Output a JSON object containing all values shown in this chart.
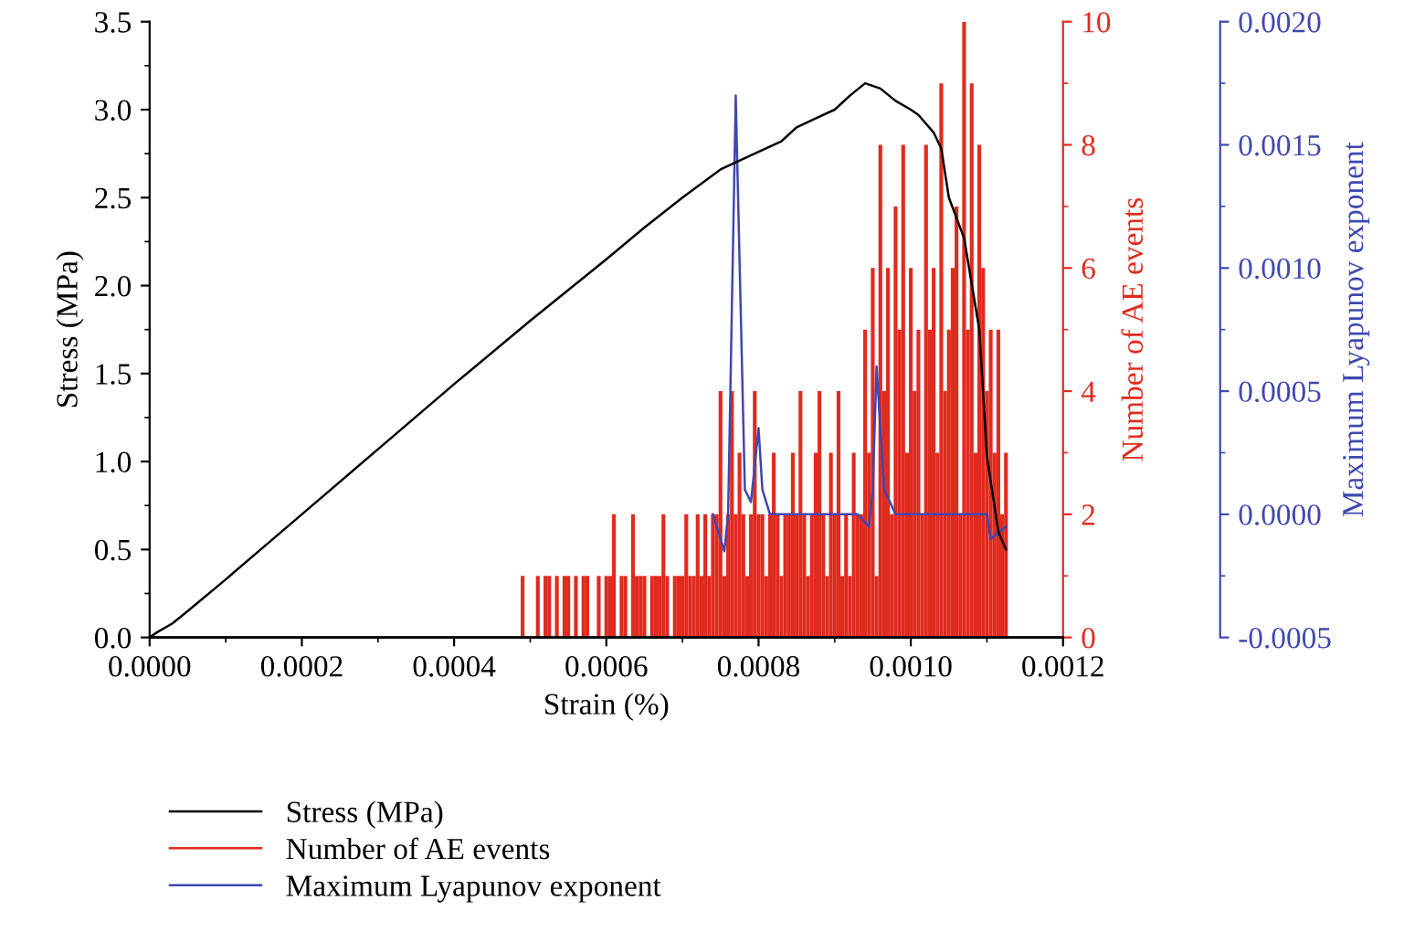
{
  "chart_data": {
    "type": "line",
    "xlabel": "Strain (%)",
    "ylabel": "Stress (MPa)",
    "y2label": "Number of AE events",
    "y3label": "Maximum Lyapunov exponent",
    "xlim": [
      0,
      0.0012
    ],
    "xticks": [
      {
        "value": 0,
        "label": "0.0000"
      },
      {
        "value": 0.0002,
        "label": "0.0002"
      },
      {
        "value": 0.0004,
        "label": "0.0004"
      },
      {
        "value": 0.0006,
        "label": "0.0006"
      },
      {
        "value": 0.0008,
        "label": "0.0008"
      },
      {
        "value": 0.001,
        "label": "0.0010"
      },
      {
        "value": 0.0012,
        "label": "0.0012"
      }
    ],
    "ylim": [
      0,
      3.5
    ],
    "yticks": [
      {
        "value": 0,
        "label": "0.0"
      },
      {
        "value": 0.5,
        "label": "0.5"
      },
      {
        "value": 1,
        "label": "1.0"
      },
      {
        "value": 1.5,
        "label": "1.5"
      },
      {
        "value": 2,
        "label": "2.0"
      },
      {
        "value": 2.5,
        "label": "2.5"
      },
      {
        "value": 3,
        "label": "3.0"
      },
      {
        "value": 3.5,
        "label": "3.5"
      }
    ],
    "y2lim": [
      0,
      10
    ],
    "y2ticks": [
      0,
      2,
      4,
      6,
      8,
      10
    ],
    "y3lim": [
      -0.0005,
      0.002
    ],
    "y3ticks": [
      {
        "value": -0.0005,
        "label": "-0.0005"
      },
      {
        "value": 0,
        "label": "0.0000"
      },
      {
        "value": 0.0005,
        "label": "0.0005"
      },
      {
        "value": 0.001,
        "label": "0.0010"
      },
      {
        "value": 0.0015,
        "label": "0.0015"
      },
      {
        "value": 0.002,
        "label": "0.0020"
      }
    ],
    "legend": "bottom",
    "grid": false,
    "marker": "none",
    "line_style": "solid",
    "series": [
      {
        "name": "Stress (MPa)",
        "color": "#000000",
        "x": [
          0,
          1e-05,
          3e-05,
          5e-05,
          0.0001,
          0.0002,
          0.0003,
          0.0004,
          0.0005,
          0.0006,
          0.00065,
          0.0007,
          0.00075,
          0.0008,
          0.00083,
          0.00085,
          0.00088,
          0.0009,
          0.00092,
          0.00094,
          0.00096,
          0.00098,
          0.001,
          0.00101,
          0.00103,
          0.00104,
          0.00105,
          0.00107,
          0.00109,
          0.0011,
          0.001115,
          0.001125
        ],
        "values": [
          0,
          0.03,
          0.08,
          0.15,
          0.33,
          0.7,
          1.07,
          1.44,
          1.8,
          2.15,
          2.33,
          2.5,
          2.66,
          2.76,
          2.82,
          2.9,
          2.96,
          3.0,
          3.08,
          3.15,
          3.12,
          3.05,
          3.0,
          2.97,
          2.87,
          2.78,
          2.5,
          2.27,
          1.75,
          1.03,
          0.6,
          0.5
        ]
      },
      {
        "name": "Number of AE events",
        "color": "#e02b1f",
        "type": "bar",
        "axis": "y2",
        "x": [
          0.00048,
          0.000485,
          0.00049,
          0.000495,
          0.0005,
          0.000505,
          0.00051,
          0.000515,
          0.00052,
          0.000525,
          0.00053,
          0.000535,
          0.00054,
          0.000545,
          0.00055,
          0.000555,
          0.00056,
          0.000565,
          0.00057,
          0.000575,
          0.00058,
          0.000585,
          0.00059,
          0.000595,
          0.0006,
          0.000605,
          0.00061,
          0.000615,
          0.00062,
          0.000625,
          0.00063,
          0.000635,
          0.00064,
          0.000645,
          0.00065,
          0.000655,
          0.00066,
          0.000665,
          0.00067,
          0.000675,
          0.00068,
          0.000685,
          0.00069,
          0.000695,
          0.0007,
          0.000705,
          0.00071,
          0.000715,
          0.00072,
          0.000725,
          0.00073,
          0.000735,
          0.00074,
          0.000745,
          0.00075,
          0.000755,
          0.00076,
          0.000765,
          0.00077,
          0.000775,
          0.00078,
          0.000785,
          0.00079,
          0.000795,
          0.0008,
          0.000805,
          0.00081,
          0.000815,
          0.00082,
          0.000825,
          0.00083,
          0.000835,
          0.00084,
          0.000845,
          0.00085,
          0.000855,
          0.00086,
          0.000865,
          0.00087,
          0.000875,
          0.00088,
          0.000885,
          0.00089,
          0.000895,
          0.0009,
          0.000905,
          0.00091,
          0.000915,
          0.00092,
          0.000925,
          0.00093,
          0.000935,
          0.00094,
          0.000945,
          0.00095,
          0.000955,
          0.00096,
          0.000965,
          0.00097,
          0.000975,
          0.00098,
          0.000985,
          0.00099,
          0.000995,
          0.001,
          0.001005,
          0.00101,
          0.001015,
          0.00102,
          0.001025,
          0.00103,
          0.001035,
          0.00104,
          0.001045,
          0.00105,
          0.001055,
          0.00106,
          0.001065,
          0.00107,
          0.001075,
          0.00108,
          0.001085,
          0.00109,
          0.001095,
          0.0011,
          0.001105,
          0.00111,
          0.001115,
          0.00112,
          0.001125
        ],
        "values": [
          0,
          0,
          1,
          0,
          0,
          0,
          1,
          0,
          1,
          1,
          0,
          1,
          0,
          1,
          1,
          0,
          1,
          0,
          1,
          1,
          0,
          0,
          1,
          0,
          1,
          1,
          2,
          0,
          1,
          1,
          0,
          2,
          1,
          1,
          1,
          0,
          1,
          1,
          1,
          2,
          1,
          0,
          1,
          1,
          1,
          2,
          1,
          1,
          2,
          1,
          2,
          1,
          2,
          2,
          4,
          1,
          2,
          4,
          2,
          3,
          2,
          1,
          2,
          4,
          2,
          2,
          1,
          2,
          3,
          2,
          1,
          2,
          2,
          3,
          2,
          4,
          2,
          1,
          2,
          3,
          4,
          2,
          1,
          3,
          2,
          4,
          1,
          2,
          1,
          3,
          2,
          2,
          5,
          3,
          6,
          1,
          8,
          4,
          6,
          2,
          7,
          5,
          8,
          3,
          6,
          4,
          5,
          2,
          8,
          5,
          6,
          3,
          9,
          4,
          5,
          6,
          7,
          2,
          10,
          5,
          9,
          3,
          8,
          6,
          4,
          5,
          3,
          5,
          2,
          3
        ]
      },
      {
        "name": "Maximum Lyapunov exponent",
        "color": "#3f48b0",
        "axis": "y3",
        "x": [
          0.00074,
          0.000755,
          0.00076,
          0.00077,
          0.000782,
          0.00079,
          0.0008,
          0.000805,
          0.000815,
          0.00085,
          0.0009,
          0.00093,
          0.000945,
          0.00095,
          0.000955,
          0.000965,
          0.00098,
          0.00105,
          0.0011,
          0.001105,
          0.001125
        ],
        "values": [
          0.0,
          -0.00015,
          0.0,
          0.0017,
          0.0001,
          5e-05,
          0.00035,
          0.0001,
          0.0,
          0.0,
          0.0,
          0.0,
          -5e-05,
          0.0001,
          0.0006,
          0.0001,
          0.0,
          0.0,
          0.0,
          -0.0001,
          -5e-05
        ]
      }
    ]
  }
}
